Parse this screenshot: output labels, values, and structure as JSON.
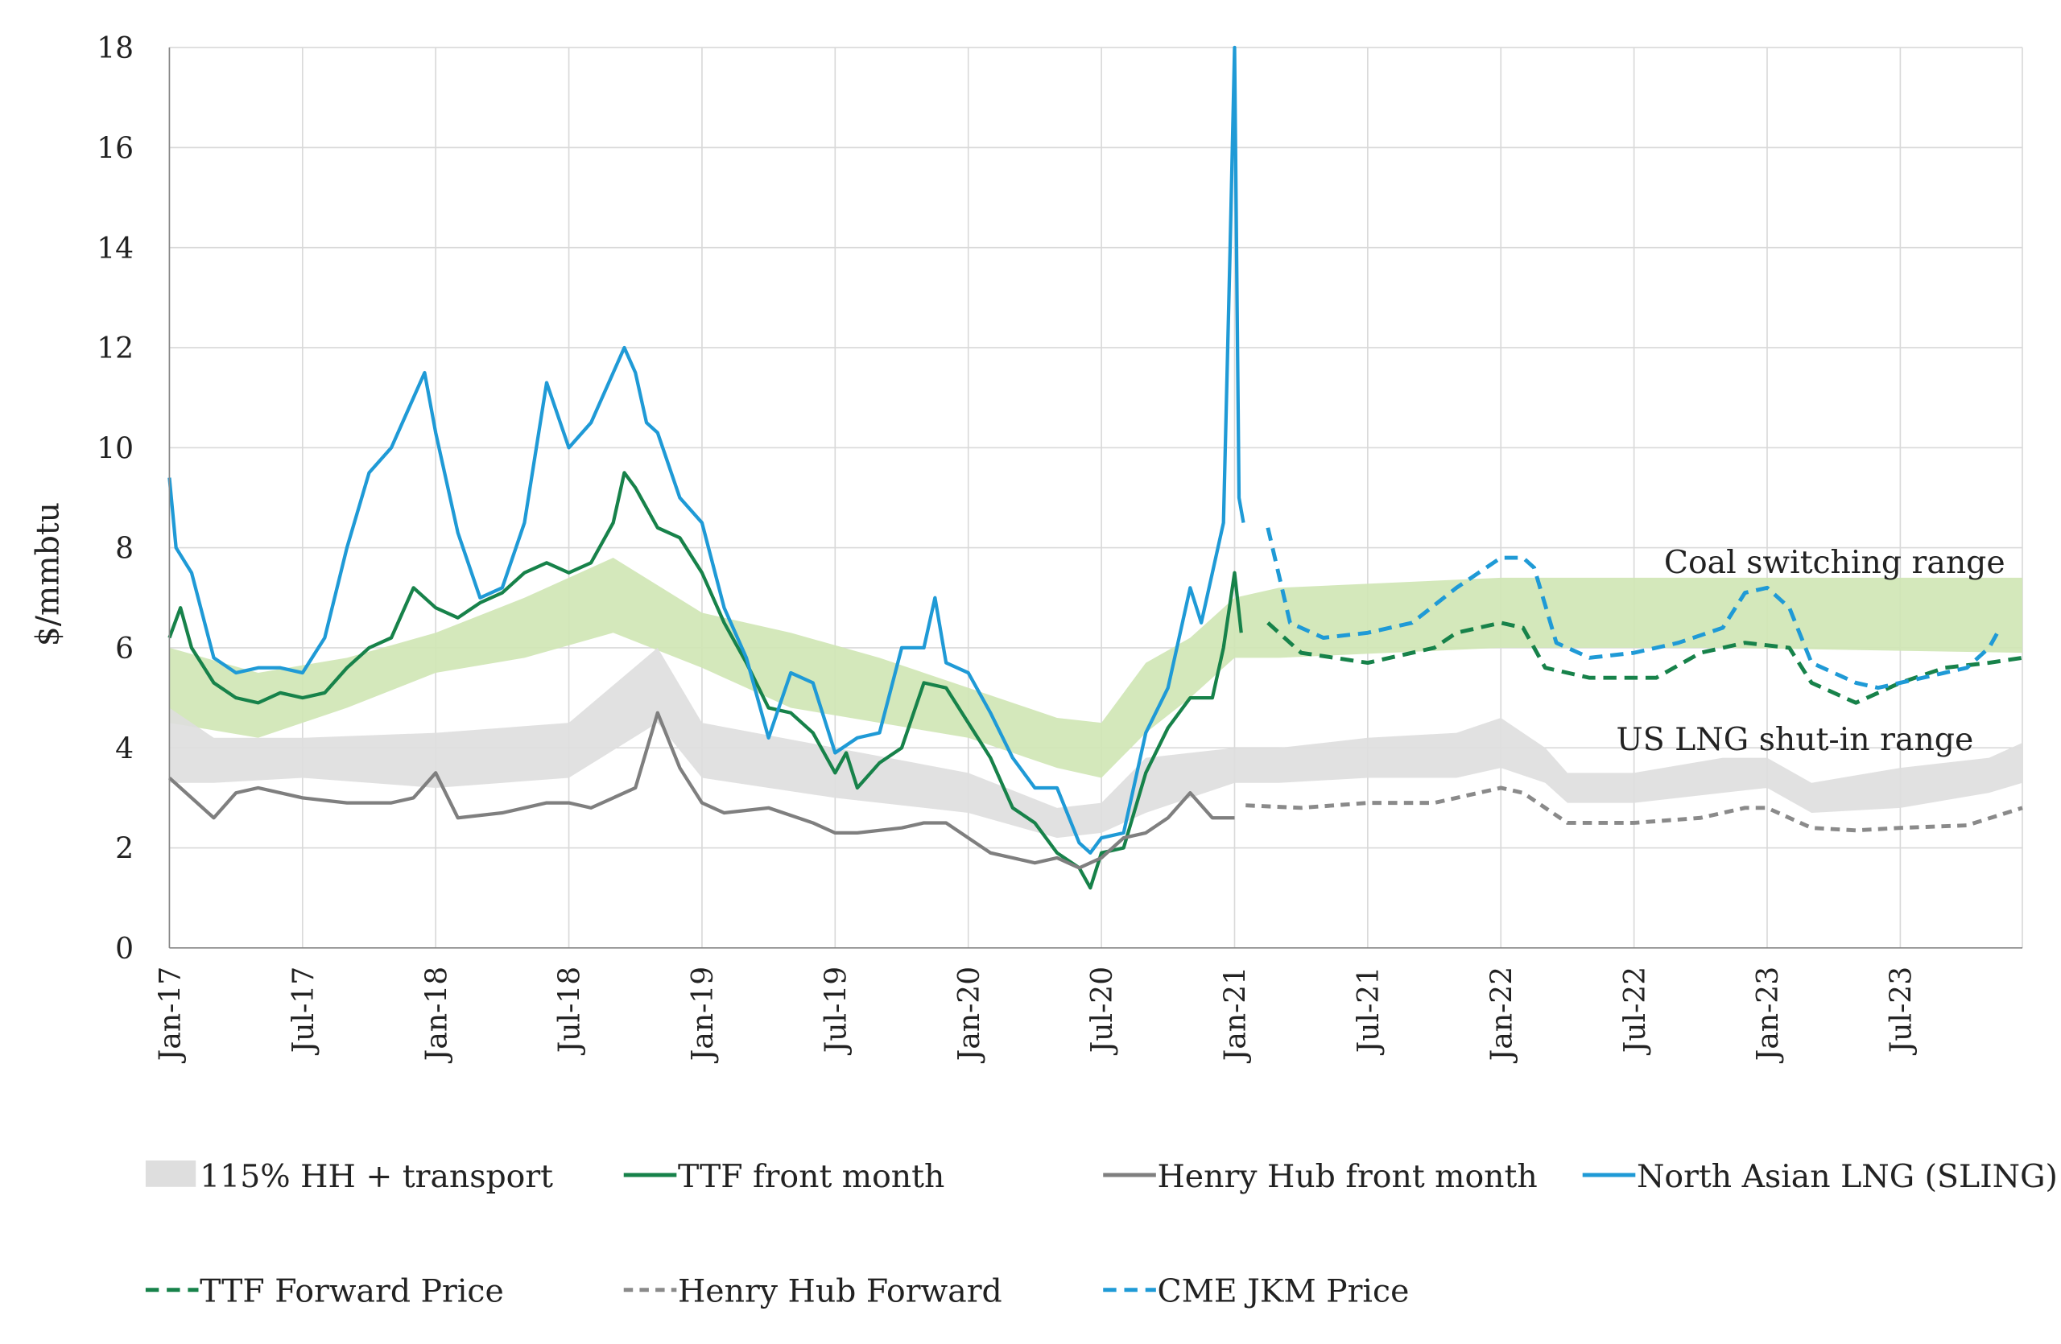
{
  "chart_data": {
    "type": "line",
    "title": "",
    "ylabel": "$/mmbtu",
    "xlabel": "",
    "ylim": [
      0,
      18
    ],
    "yticks": [
      "0",
      "2",
      "4",
      "6",
      "8",
      "10",
      "12",
      "14",
      "16",
      "18"
    ],
    "x_unit": "months since Jan-17",
    "xlim": [
      0,
      83.5
    ],
    "xticks": [
      "Jan-17",
      "Jul-17",
      "Jan-18",
      "Jul-18",
      "Jan-19",
      "Jul-19",
      "Jan-20",
      "Jul-20",
      "Jan-21",
      "Jul-21",
      "Jan-22",
      "Jul-22",
      "Jan-23",
      "Jul-23"
    ],
    "grid": true,
    "legend_position": "bottom",
    "annotations": [
      "Coal switching range",
      "US LNG shut-in range"
    ],
    "bands": [
      {
        "name": "Coal switching range",
        "color": "#cfe6b4",
        "points": [
          [
            0,
            4.5,
            6.0
          ],
          [
            4,
            4.2,
            5.5
          ],
          [
            8,
            4.8,
            5.8
          ],
          [
            12,
            5.5,
            6.3
          ],
          [
            16,
            5.8,
            7.0
          ],
          [
            20,
            6.3,
            7.8
          ],
          [
            24,
            5.6,
            6.7
          ],
          [
            28,
            4.8,
            6.3
          ],
          [
            32,
            4.5,
            5.8
          ],
          [
            36,
            4.2,
            5.2
          ],
          [
            40,
            3.6,
            4.6
          ],
          [
            42,
            3.4,
            4.5
          ],
          [
            44,
            4.3,
            5.7
          ],
          [
            46,
            5.0,
            6.2
          ],
          [
            48,
            5.8,
            7.0
          ],
          [
            50,
            5.8,
            7.2
          ],
          [
            60,
            6.0,
            7.4
          ],
          [
            70,
            6.0,
            7.4
          ],
          [
            83.5,
            5.9,
            7.4
          ]
        ]
      },
      {
        "name": "115% HH + transport",
        "color": "#dedede",
        "points": [
          [
            0,
            3.3,
            4.8
          ],
          [
            2,
            3.3,
            4.2
          ],
          [
            6,
            3.4,
            4.2
          ],
          [
            12,
            3.2,
            4.3
          ],
          [
            18,
            3.4,
            4.5
          ],
          [
            22,
            4.5,
            6.0
          ],
          [
            24,
            3.4,
            4.5
          ],
          [
            30,
            3.0,
            4.0
          ],
          [
            36,
            2.7,
            3.5
          ],
          [
            40,
            2.2,
            2.8
          ],
          [
            42,
            2.3,
            2.9
          ],
          [
            44,
            2.7,
            3.8
          ],
          [
            48,
            3.3,
            4.0
          ],
          [
            50,
            3.3,
            4.0
          ],
          [
            54,
            3.4,
            4.2
          ],
          [
            58,
            3.4,
            4.3
          ],
          [
            60,
            3.6,
            4.6
          ],
          [
            62,
            3.3,
            4.0
          ],
          [
            63,
            2.9,
            3.5
          ],
          [
            66,
            2.9,
            3.5
          ],
          [
            70,
            3.1,
            3.8
          ],
          [
            72,
            3.2,
            3.8
          ],
          [
            74,
            2.7,
            3.3
          ],
          [
            78,
            2.8,
            3.6
          ],
          [
            82,
            3.1,
            3.8
          ],
          [
            83.5,
            3.3,
            4.1
          ]
        ]
      }
    ],
    "series": [
      {
        "name": "TTF front month",
        "color": "#17824a",
        "dash": false,
        "points": [
          [
            0,
            6.2
          ],
          [
            0.5,
            6.8
          ],
          [
            1,
            6.0
          ],
          [
            2,
            5.3
          ],
          [
            3,
            5.0
          ],
          [
            4,
            4.9
          ],
          [
            5,
            5.1
          ],
          [
            6,
            5.0
          ],
          [
            7,
            5.1
          ],
          [
            8,
            5.6
          ],
          [
            9,
            6.0
          ],
          [
            10,
            6.2
          ],
          [
            11,
            7.2
          ],
          [
            12,
            6.8
          ],
          [
            13,
            6.6
          ],
          [
            14,
            6.9
          ],
          [
            15,
            7.1
          ],
          [
            16,
            7.5
          ],
          [
            17,
            7.7
          ],
          [
            18,
            7.5
          ],
          [
            19,
            7.7
          ],
          [
            20,
            8.5
          ],
          [
            20.5,
            9.5
          ],
          [
            21,
            9.2
          ],
          [
            22,
            8.4
          ],
          [
            23,
            8.2
          ],
          [
            24,
            7.5
          ],
          [
            25,
            6.5
          ],
          [
            26,
            5.7
          ],
          [
            27,
            4.8
          ],
          [
            28,
            4.7
          ],
          [
            29,
            4.3
          ],
          [
            30,
            3.5
          ],
          [
            30.5,
            3.9
          ],
          [
            31,
            3.2
          ],
          [
            32,
            3.7
          ],
          [
            33,
            4.0
          ],
          [
            34,
            5.3
          ],
          [
            35,
            5.2
          ],
          [
            36,
            4.5
          ],
          [
            37,
            3.8
          ],
          [
            38,
            2.8
          ],
          [
            39,
            2.5
          ],
          [
            40,
            1.9
          ],
          [
            41,
            1.6
          ],
          [
            41.5,
            1.2
          ],
          [
            42,
            1.9
          ],
          [
            43,
            2.0
          ],
          [
            44,
            3.5
          ],
          [
            45,
            4.4
          ],
          [
            46,
            5.0
          ],
          [
            47,
            5.0
          ],
          [
            47.5,
            6.0
          ],
          [
            48,
            7.5
          ],
          [
            48.3,
            6.3
          ]
        ]
      },
      {
        "name": "Henry Hub front month",
        "color": "#7f7f7f",
        "dash": false,
        "points": [
          [
            0,
            3.4
          ],
          [
            1,
            3.0
          ],
          [
            2,
            2.6
          ],
          [
            3,
            3.1
          ],
          [
            4,
            3.2
          ],
          [
            6,
            3.0
          ],
          [
            8,
            2.9
          ],
          [
            10,
            2.9
          ],
          [
            11,
            3.0
          ],
          [
            12,
            3.5
          ],
          [
            13,
            2.6
          ],
          [
            15,
            2.7
          ],
          [
            17,
            2.9
          ],
          [
            18,
            2.9
          ],
          [
            19,
            2.8
          ],
          [
            20,
            3.0
          ],
          [
            21,
            3.2
          ],
          [
            22,
            4.7
          ],
          [
            23,
            3.6
          ],
          [
            24,
            2.9
          ],
          [
            25,
            2.7
          ],
          [
            27,
            2.8
          ],
          [
            29,
            2.5
          ],
          [
            30,
            2.3
          ],
          [
            31,
            2.3
          ],
          [
            33,
            2.4
          ],
          [
            34,
            2.5
          ],
          [
            35,
            2.5
          ],
          [
            36,
            2.2
          ],
          [
            37,
            1.9
          ],
          [
            38,
            1.8
          ],
          [
            39,
            1.7
          ],
          [
            40,
            1.8
          ],
          [
            41,
            1.6
          ],
          [
            42,
            1.8
          ],
          [
            43,
            2.2
          ],
          [
            44,
            2.3
          ],
          [
            45,
            2.6
          ],
          [
            46,
            3.1
          ],
          [
            47,
            2.6
          ],
          [
            48,
            2.6
          ]
        ]
      },
      {
        "name": "North Asian LNG (SLING)",
        "color": "#1f9ad6",
        "dash": false,
        "points": [
          [
            0,
            9.4
          ],
          [
            0.3,
            8.0
          ],
          [
            1,
            7.5
          ],
          [
            2,
            5.8
          ],
          [
            3,
            5.5
          ],
          [
            4,
            5.6
          ],
          [
            5,
            5.6
          ],
          [
            6,
            5.5
          ],
          [
            7,
            6.2
          ],
          [
            8,
            8.0
          ],
          [
            9,
            9.5
          ],
          [
            10,
            10.0
          ],
          [
            11,
            11.0
          ],
          [
            11.5,
            11.5
          ],
          [
            12,
            10.3
          ],
          [
            13,
            8.3
          ],
          [
            14,
            7.0
          ],
          [
            15,
            7.2
          ],
          [
            16,
            8.5
          ],
          [
            17,
            11.3
          ],
          [
            18,
            10.0
          ],
          [
            19,
            10.5
          ],
          [
            20,
            11.5
          ],
          [
            20.5,
            12.0
          ],
          [
            21,
            11.5
          ],
          [
            21.5,
            10.5
          ],
          [
            22,
            10.3
          ],
          [
            23,
            9.0
          ],
          [
            24,
            8.5
          ],
          [
            25,
            6.8
          ],
          [
            26,
            5.8
          ],
          [
            27,
            4.2
          ],
          [
            28,
            5.5
          ],
          [
            29,
            5.3
          ],
          [
            30,
            3.9
          ],
          [
            31,
            4.2
          ],
          [
            32,
            4.3
          ],
          [
            33,
            6.0
          ],
          [
            34,
            6.0
          ],
          [
            34.5,
            7.0
          ],
          [
            35,
            5.7
          ],
          [
            36,
            5.5
          ],
          [
            37,
            4.7
          ],
          [
            38,
            3.8
          ],
          [
            39,
            3.2
          ],
          [
            40,
            3.2
          ],
          [
            41,
            2.1
          ],
          [
            41.5,
            1.9
          ],
          [
            42,
            2.2
          ],
          [
            43,
            2.3
          ],
          [
            44,
            4.3
          ],
          [
            45,
            5.2
          ],
          [
            46,
            7.2
          ],
          [
            46.5,
            6.5
          ],
          [
            47,
            7.5
          ],
          [
            47.5,
            8.5
          ],
          [
            47.8,
            14
          ],
          [
            48,
            18.5
          ],
          [
            48.2,
            9.0
          ],
          [
            48.4,
            8.5
          ]
        ]
      },
      {
        "name": "TTF Forward Price",
        "color": "#17824a",
        "dash": true,
        "points": [
          [
            49.5,
            6.5
          ],
          [
            51,
            5.9
          ],
          [
            54,
            5.7
          ],
          [
            57,
            6.0
          ],
          [
            58,
            6.3
          ],
          [
            60,
            6.5
          ],
          [
            61,
            6.4
          ],
          [
            62,
            5.6
          ],
          [
            64,
            5.4
          ],
          [
            67,
            5.4
          ],
          [
            69,
            5.9
          ],
          [
            71,
            6.1
          ],
          [
            73,
            6.0
          ],
          [
            74,
            5.3
          ],
          [
            76,
            4.9
          ],
          [
            78,
            5.3
          ],
          [
            80,
            5.6
          ],
          [
            82,
            5.7
          ],
          [
            83.5,
            5.8
          ]
        ]
      },
      {
        "name": "Henry Hub Forward",
        "color": "#8a8a8a",
        "dash": true,
        "points": [
          [
            48.5,
            2.85
          ],
          [
            51,
            2.8
          ],
          [
            54,
            2.9
          ],
          [
            57,
            2.9
          ],
          [
            59,
            3.1
          ],
          [
            60,
            3.2
          ],
          [
            61,
            3.1
          ],
          [
            62,
            2.8
          ],
          [
            63,
            2.5
          ],
          [
            66,
            2.5
          ],
          [
            69,
            2.6
          ],
          [
            71,
            2.8
          ],
          [
            72,
            2.8
          ],
          [
            73,
            2.6
          ],
          [
            74,
            2.4
          ],
          [
            76,
            2.35
          ],
          [
            78,
            2.4
          ],
          [
            81,
            2.45
          ],
          [
            83.5,
            2.8
          ]
        ]
      },
      {
        "name": "CME JKM Price",
        "color": "#1f9ad6",
        "dash": true,
        "points": [
          [
            49.5,
            8.4
          ],
          [
            50.5,
            6.5
          ],
          [
            52,
            6.2
          ],
          [
            54,
            6.3
          ],
          [
            56,
            6.5
          ],
          [
            58,
            7.2
          ],
          [
            60,
            7.8
          ],
          [
            61,
            7.8
          ],
          [
            61.5,
            7.6
          ],
          [
            62.5,
            6.1
          ],
          [
            64,
            5.8
          ],
          [
            66,
            5.9
          ],
          [
            68,
            6.1
          ],
          [
            70,
            6.4
          ],
          [
            71,
            7.1
          ],
          [
            72,
            7.2
          ],
          [
            73,
            6.8
          ],
          [
            74,
            5.7
          ],
          [
            76,
            5.3
          ],
          [
            77,
            5.2
          ],
          [
            79,
            5.4
          ],
          [
            81,
            5.6
          ],
          [
            82,
            6.0
          ],
          [
            82.5,
            6.4
          ]
        ]
      }
    ],
    "legend": [
      {
        "label": "115% HH + transport",
        "kind": "band",
        "color": "#dedede"
      },
      {
        "label": "TTF front month",
        "kind": "line",
        "color": "#17824a"
      },
      {
        "label": "Henry Hub front month",
        "kind": "line",
        "color": "#7f7f7f"
      },
      {
        "label": "North Asian LNG (SLING)",
        "kind": "line",
        "color": "#1f9ad6"
      },
      {
        "label": "TTF Forward Price",
        "kind": "dash",
        "color": "#17824a"
      },
      {
        "label": "Henry Hub Forward",
        "kind": "dash",
        "color": "#8a8a8a"
      },
      {
        "label": "CME JKM Price",
        "kind": "dash",
        "color": "#1f9ad6"
      }
    ]
  }
}
